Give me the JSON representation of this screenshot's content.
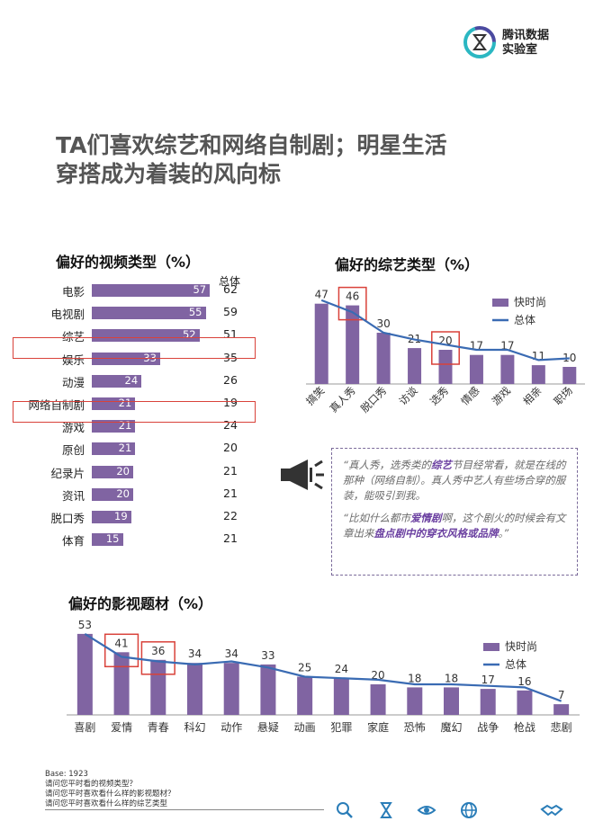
{
  "header": {
    "logo_line1": "腾讯数据",
    "logo_line2": "实验室",
    "title_line1": "TA们喜欢综艺和网络自制剧；明星生活",
    "title_line2": "穿搭成为着装的风向标"
  },
  "colors": {
    "bar": "#8064a2",
    "line": "#3a6bb3",
    "highlight": "#d9423a",
    "accent_text": "#6a3fa0"
  },
  "chart_data": [
    {
      "type": "bar",
      "orientation": "horizontal",
      "title": "偏好的视频类型（%）",
      "total_label": "总体",
      "categories": [
        "电影",
        "电视剧",
        "综艺",
        "娱乐",
        "动漫",
        "网络自制剧",
        "游戏",
        "原创",
        "纪录片",
        "资讯",
        "脱口秀",
        "体育"
      ],
      "series": [
        {
          "name": "快时尚",
          "values": [
            57,
            55,
            52,
            33,
            24,
            21,
            21,
            21,
            20,
            20,
            19,
            15
          ]
        },
        {
          "name": "总体",
          "values": [
            62,
            59,
            51,
            35,
            26,
            19,
            24,
            20,
            21,
            21,
            22,
            21
          ]
        }
      ],
      "highlighted": [
        "综艺",
        "网络自制剧"
      ]
    },
    {
      "type": "bar",
      "title": "偏好的综艺类型（%）",
      "categories": [
        "搞笑",
        "真人秀",
        "脱口秀",
        "访谈",
        "选秀",
        "情感",
        "游戏",
        "相亲",
        "职场"
      ],
      "series": [
        {
          "name": "快时尚",
          "values": [
            47,
            46,
            30,
            21,
            20,
            17,
            17,
            11,
            10
          ]
        },
        {
          "name": "总体",
          "values": [
            49,
            42,
            30,
            26,
            23,
            20,
            20,
            14,
            15
          ]
        }
      ],
      "legend": [
        "快时尚",
        "总体"
      ],
      "highlighted": [
        "真人秀",
        "选秀"
      ]
    },
    {
      "type": "bar",
      "title": "偏好的影视题材（%）",
      "categories": [
        "喜剧",
        "爱情",
        "青春",
        "科幻",
        "动作",
        "悬疑",
        "动画",
        "犯罪",
        "家庭",
        "恐怖",
        "魔幻",
        "战争",
        "枪战",
        "悲剧"
      ],
      "series": [
        {
          "name": "快时尚",
          "values": [
            53,
            41,
            36,
            34,
            34,
            33,
            25,
            24,
            20,
            18,
            18,
            17,
            16,
            7
          ]
        },
        {
          "name": "总体",
          "values": [
            53,
            38,
            35,
            33,
            35,
            31,
            25,
            24,
            23,
            20,
            20,
            19,
            18,
            9
          ]
        }
      ],
      "legend": [
        "快时尚",
        "总体"
      ],
      "highlighted": [
        "爱情",
        "青春"
      ]
    }
  ],
  "quotes": {
    "q1_a": "“真人秀，选秀类的",
    "q1_hl": "综艺",
    "q1_b": "节目经常看，就是在线的那种（网络自制）。真人秀中艺人有些场合穿的服装，能吸引到我。",
    "q2_a": "“比如什么都市",
    "q2_hl1": "爱情剧",
    "q2_b": "啊，这个剧火的时候会有文章出来",
    "q2_hl2": "盘点剧中的穿衣风格或品牌",
    "q2_c": "。”"
  },
  "footnote": {
    "base": "Base: 1923",
    "q1": "请问您平时看的视频类型？",
    "q2": "请问您平时喜欢看什么样的影视题材？",
    "q3": "请问您平时喜欢看什么样的综艺类型"
  },
  "footer_icons": [
    "search-icon",
    "hourglass-icon",
    "eye-icon",
    "globe-icon",
    "handshake-icon"
  ]
}
